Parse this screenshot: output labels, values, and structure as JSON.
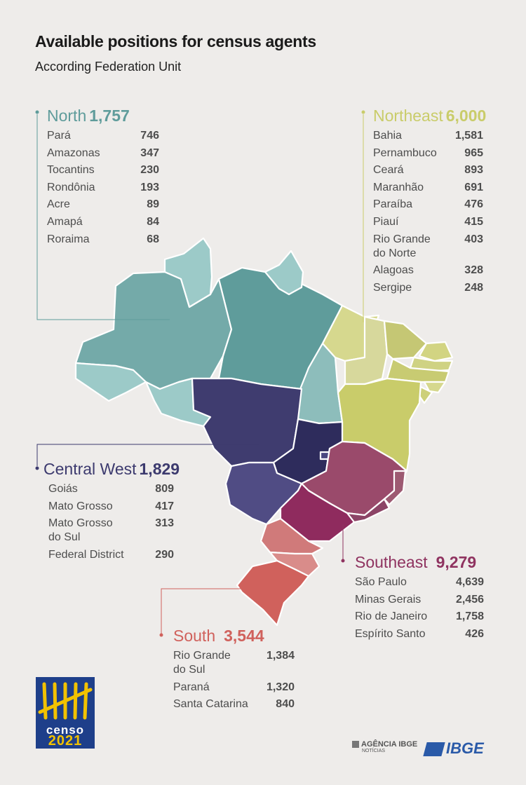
{
  "title": "Available positions for census agents",
  "subtitle": "According Federation Unit",
  "colors": {
    "north": "#5f9c9b",
    "northeast": "#c9cc6a",
    "central_west": "#3c3a6e",
    "southeast": "#8f3360",
    "south": "#d0615c"
  },
  "regions": {
    "north": {
      "name": "North",
      "total": "1,757",
      "states": [
        {
          "name": "Pará",
          "value": "746"
        },
        {
          "name": "Amazonas",
          "value": "347"
        },
        {
          "name": "Tocantins",
          "value": "230"
        },
        {
          "name": "Rondônia",
          "value": "193"
        },
        {
          "name": "Acre",
          "value": "89"
        },
        {
          "name": "Amapá",
          "value": "84"
        },
        {
          "name": "Roraima",
          "value": "68"
        }
      ]
    },
    "northeast": {
      "name": "Northeast",
      "total": "6,000",
      "states": [
        {
          "name": "Bahia",
          "value": "1,581"
        },
        {
          "name": "Pernambuco",
          "value": "965"
        },
        {
          "name": "Ceará",
          "value": "893"
        },
        {
          "name": "Maranhão",
          "value": "691"
        },
        {
          "name": "Paraíba",
          "value": "476"
        },
        {
          "name": "Piauí",
          "value": "415"
        },
        {
          "name": "Rio Grande\ndo Norte",
          "value": "403"
        },
        {
          "name": "Alagoas",
          "value": "328"
        },
        {
          "name": "Sergipe",
          "value": "248"
        }
      ]
    },
    "central_west": {
      "name": "Central West",
      "total": "1,829",
      "states": [
        {
          "name": "Goiás",
          "value": "809"
        },
        {
          "name": "Mato Grosso",
          "value": "417"
        },
        {
          "name": "Mato Grosso\ndo Sul",
          "value": "313"
        },
        {
          "name": "Federal District",
          "value": "290"
        }
      ]
    },
    "southeast": {
      "name": "Southeast",
      "total": "9,279",
      "states": [
        {
          "name": "São Paulo",
          "value": "4,639"
        },
        {
          "name": "Minas Gerais",
          "value": "2,456"
        },
        {
          "name": "Rio de Janeiro",
          "value": "1,758"
        },
        {
          "name": "Espírito Santo",
          "value": "426"
        }
      ]
    },
    "south": {
      "name": "South",
      "total": "3,544",
      "states": [
        {
          "name": "Rio Grande\ndo Sul",
          "value": "1,384"
        },
        {
          "name": "Paraná",
          "value": "1,320"
        },
        {
          "name": "Santa Catarina",
          "value": "840"
        }
      ]
    }
  },
  "logos": {
    "censo_line1": "censo",
    "censo_line2": "2021",
    "agencia_name": "AGÊNCIA IBGE",
    "agencia_sub": "NOTÍCIAS",
    "ibge": "IBGE"
  }
}
